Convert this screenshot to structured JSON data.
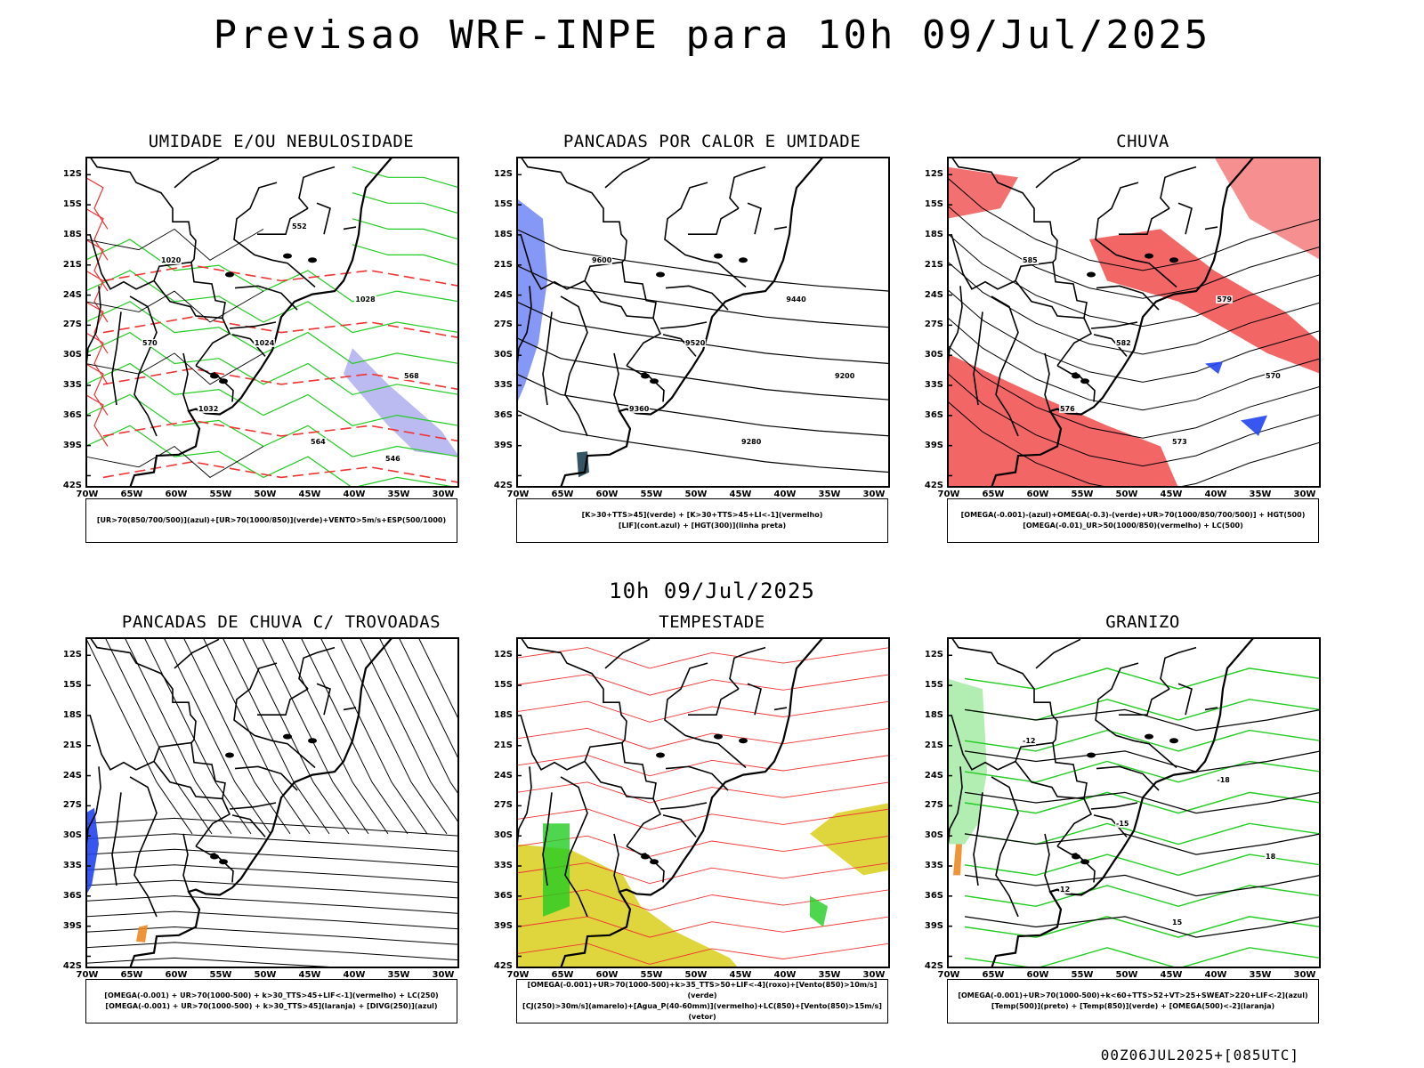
{
  "page": {
    "title": "Previsao WRF-INPE  para 10h 09/Jul/2025",
    "subtitle": "10h 09/Jul/2025",
    "footer": "00Z06JUL2025+[085UTC]"
  },
  "axes": {
    "lat_ticks": [
      "12S",
      "15S",
      "18S",
      "21S",
      "24S",
      "27S",
      "30S",
      "33S",
      "36S",
      "39S",
      "42S"
    ],
    "lon_ticks": [
      "70W",
      "65W",
      "60W",
      "55W",
      "50W",
      "45W",
      "40W",
      "35W",
      "30W"
    ]
  },
  "colors": {
    "green": "#22cc22",
    "red": "#ee3333",
    "blue": "#2244ee",
    "purple": "#aaaaee",
    "yellow": "#ddd433",
    "orange": "#ee8822"
  },
  "panels": [
    {
      "title": "UMIDADE E/OU NEBULOSIDADE",
      "legend": [
        "[UR>70(850/700/500)](azul)+[UR>70(1000/850)](verde)+VENTO>5m/s+ESP(500/1000)"
      ],
      "contour_labels": [
        "1020",
        "1024",
        "1028",
        "1032",
        "564",
        "568",
        "570",
        "552",
        "546"
      ]
    },
    {
      "title": "PANCADAS POR CALOR E UMIDADE",
      "legend": [
        "[K>30+TTS>45](verde) + [K>30+TTS>45+LI<-1](vermelho)",
        "[LIF](cont.azul) + [HGT(300)](linha preta)"
      ],
      "contour_labels": [
        "9600",
        "9520",
        "9440",
        "9360",
        "9280",
        "9200"
      ]
    },
    {
      "title": "CHUVA",
      "legend": [
        "[OMEGA(-0.001)-(azul)+OMEGA(-0.3)-(verde)+UR>70(1000/850/700/500)] + HGT(500)",
        "[OMEGA(-0.01)_UR>50(1000/850)(vermelho) + LC(500)"
      ],
      "contour_labels": [
        "585",
        "582",
        "579",
        "576",
        "573",
        "570"
      ]
    },
    {
      "title": "PANCADAS DE CHUVA C/ TROVOADAS",
      "legend": [
        "[OMEGA(-0.001) + UR>70(1000-500) + k>30_TTS>45+LIF<-1](vermelho) + LC(250)",
        "[OMEGA(-0.001) + UR>70(1000-500) + k>30_TTS>45](laranja) + [DIVG(250)](azul)"
      ],
      "contour_labels": []
    },
    {
      "title": "TEMPESTADE",
      "legend": [
        "[OMEGA(-0.001)+UR>70(1000-500)+k>35_TTS>50+LIF<-4](roxo)+[Vento(850)>10m/s](verde)",
        "[CJ(250)>30m/s](amarelo)+[Agua_P(40-60mm)](vermelho)+LC(850)+[Vento(850)>15m/s](vetor)"
      ],
      "contour_labels": []
    },
    {
      "title": "GRANIZO",
      "legend": [
        "[OMEGA(-0.001)+UR>70(1000-500)+k<60+TTS>52+VT>25+SWEAT>220+LIF<-2](azul)",
        "[Temp(500)](preto) + [Temp(850)](verde) + [OMEGA(500)<-2](laranja)"
      ],
      "contour_labels": [
        "-12",
        "-15",
        "-18",
        "12",
        "15",
        "18"
      ]
    }
  ]
}
